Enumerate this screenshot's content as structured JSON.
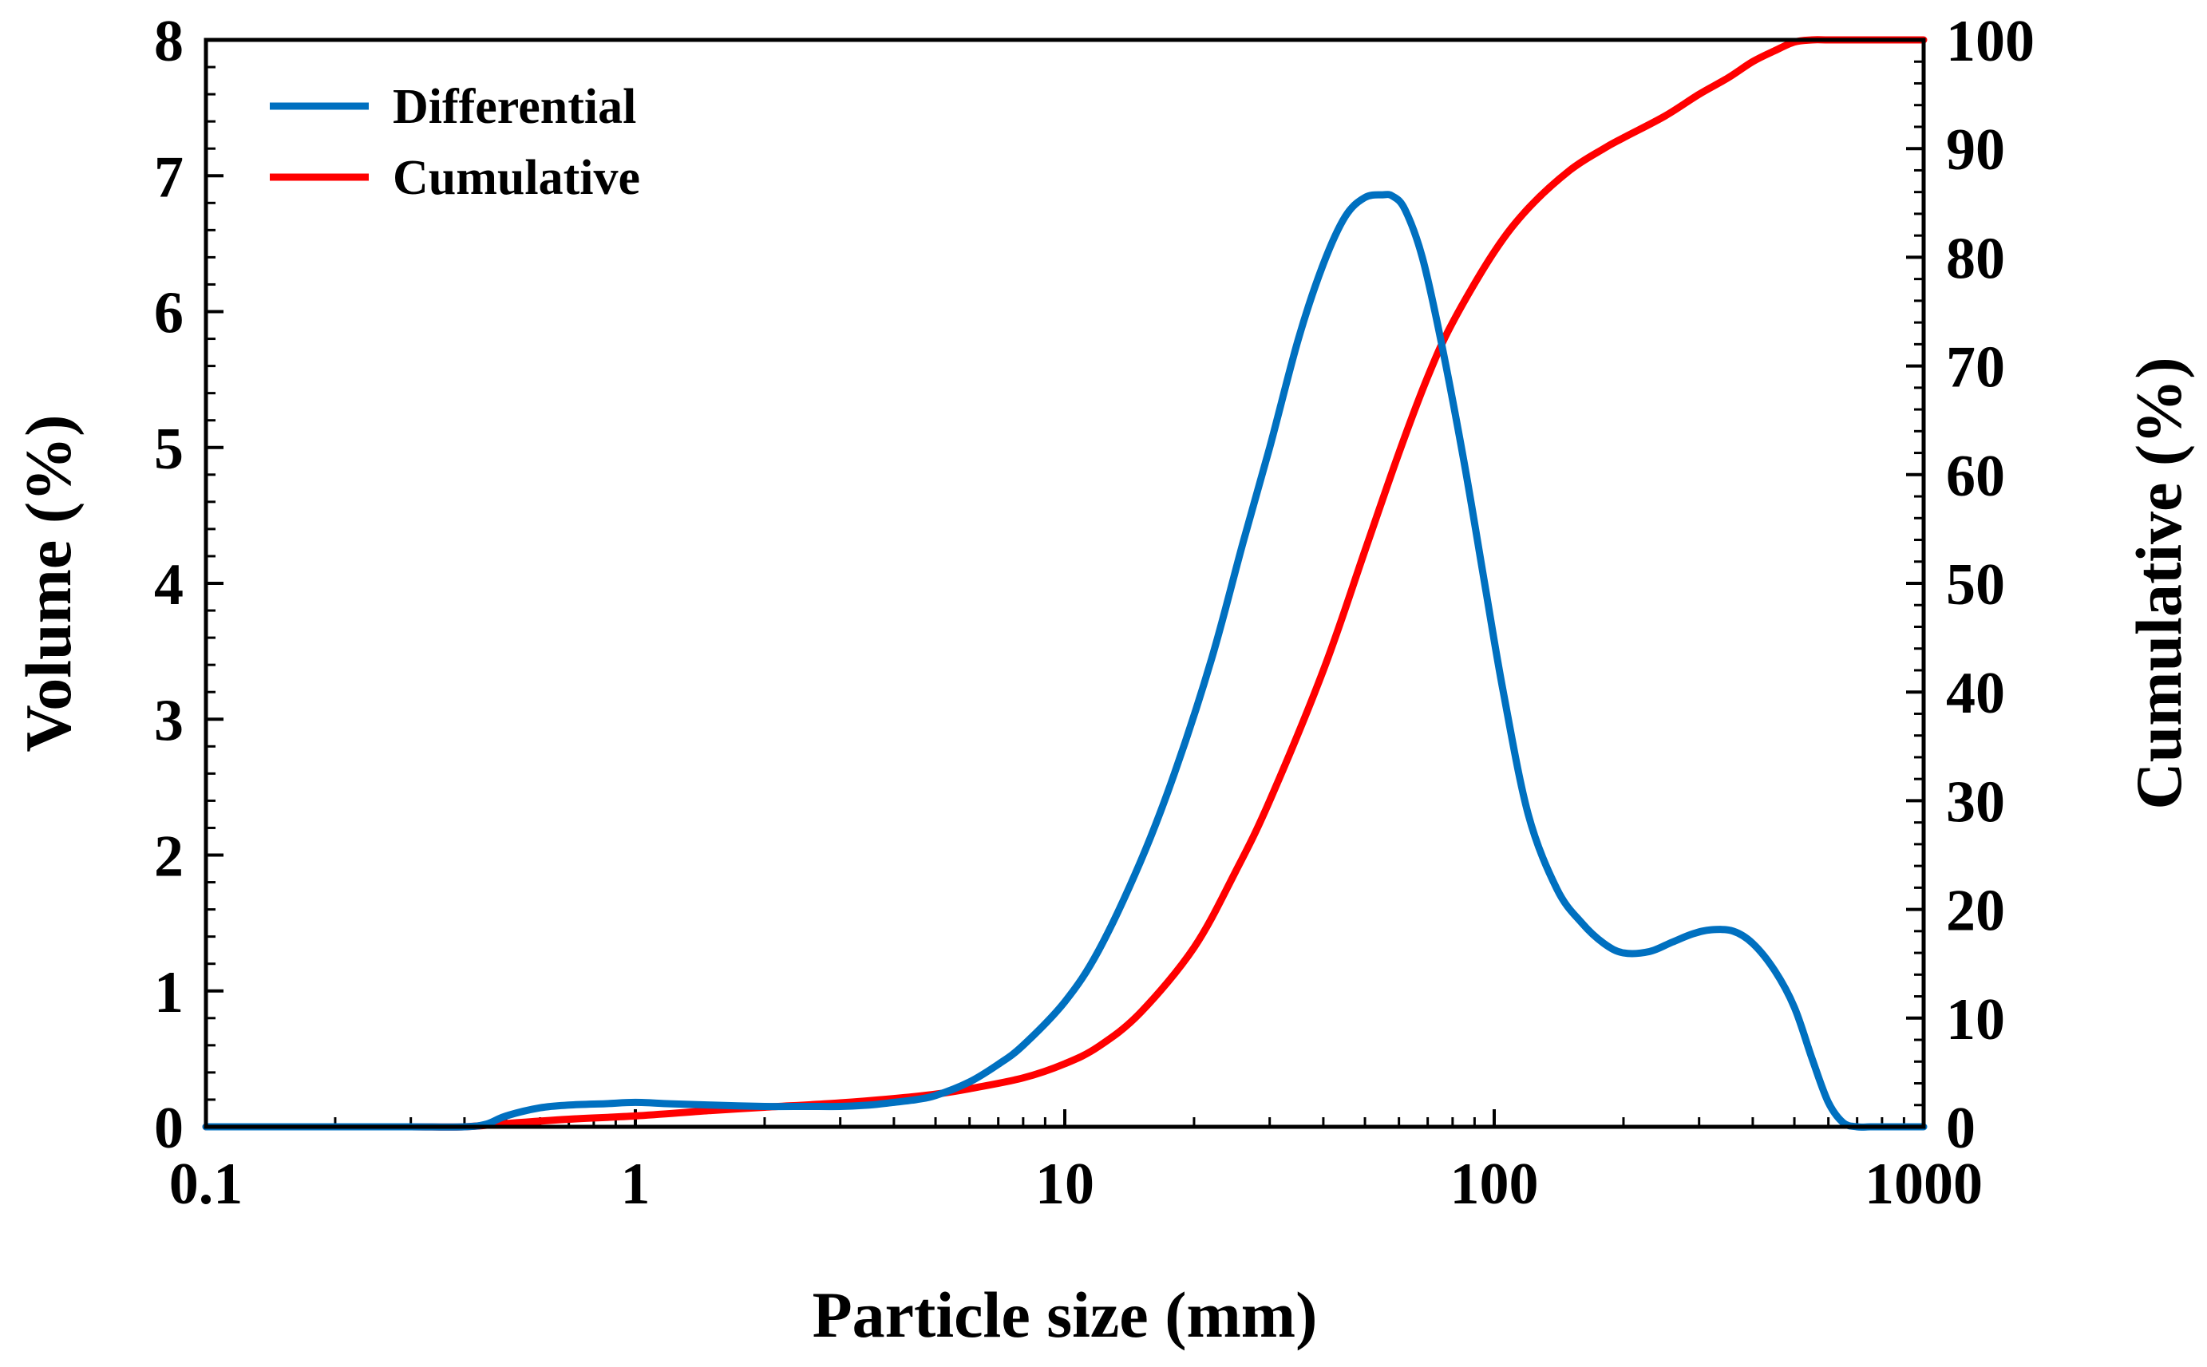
{
  "chart_data": {
    "type": "line",
    "xlabel": "Particle size (mm)",
    "ylabel": "Volume (%)",
    "y2label": "Cumulative (%)",
    "xscale": "log",
    "xlim": [
      0.1,
      1000
    ],
    "ylim": [
      0,
      8
    ],
    "y2lim": [
      0,
      100
    ],
    "x_ticks": [
      0.1,
      1,
      10,
      100,
      1000
    ],
    "x_tick_labels": [
      "0.1",
      "1",
      "10",
      "100",
      "1000"
    ],
    "y_ticks": [
      0,
      1,
      2,
      3,
      4,
      5,
      6,
      7,
      8
    ],
    "y_tick_labels": [
      "0",
      "1",
      "2",
      "3",
      "4",
      "5",
      "6",
      "7",
      "8"
    ],
    "y2_ticks": [
      0,
      10,
      20,
      30,
      40,
      50,
      60,
      70,
      80,
      90,
      100
    ],
    "y2_tick_labels": [
      "0",
      "10",
      "20",
      "30",
      "40",
      "50",
      "60",
      "70",
      "80",
      "90",
      "100"
    ],
    "legend_position": "top-left",
    "grid": false,
    "series": [
      {
        "name": "Differential",
        "axis": "left",
        "color": "#0070C0",
        "x": [
          0.1,
          0.2,
          0.3,
          0.4,
          0.45,
          0.5,
          0.6,
          0.7,
          0.85,
          1.0,
          1.2,
          1.5,
          2.0,
          2.5,
          3.0,
          3.5,
          4.0,
          4.5,
          5.0,
          6.0,
          7.0,
          8.0,
          10,
          12,
          15,
          18,
          22,
          26,
          30,
          35,
          40,
          45,
          50,
          55,
          58,
          62,
          68,
          75,
          85,
          95,
          105,
          120,
          140,
          160,
          180,
          200,
          230,
          260,
          290,
          320,
          360,
          400,
          450,
          500,
          550,
          600,
          650,
          700,
          750,
          800,
          900,
          1000
        ],
        "values": [
          0,
          0,
          0,
          0,
          0.02,
          0.08,
          0.14,
          0.16,
          0.17,
          0.18,
          0.17,
          0.16,
          0.15,
          0.15,
          0.15,
          0.16,
          0.18,
          0.2,
          0.23,
          0.33,
          0.46,
          0.6,
          0.92,
          1.3,
          1.95,
          2.6,
          3.45,
          4.3,
          5.0,
          5.8,
          6.35,
          6.7,
          6.84,
          6.86,
          6.85,
          6.75,
          6.4,
          5.8,
          4.9,
          4.0,
          3.2,
          2.3,
          1.75,
          1.5,
          1.35,
          1.28,
          1.29,
          1.36,
          1.42,
          1.45,
          1.44,
          1.35,
          1.15,
          0.88,
          0.5,
          0.18,
          0.03,
          0,
          0,
          0,
          0,
          0
        ]
      },
      {
        "name": "Cumulative",
        "axis": "right",
        "color": "#FF0000",
        "x": [
          0.1,
          0.2,
          0.3,
          0.4,
          0.5,
          0.7,
          1.0,
          1.5,
          2.0,
          3.0,
          4.0,
          5.0,
          6.0,
          8.0,
          10,
          12,
          15,
          20,
          25,
          30,
          40,
          50,
          60,
          70,
          80,
          100,
          120,
          150,
          180,
          200,
          250,
          300,
          350,
          400,
          450,
          500,
          550,
          600,
          700,
          800,
          1000
        ],
        "values": [
          0,
          0,
          0,
          0,
          0.3,
          0.7,
          1.0,
          1.5,
          1.8,
          2.2,
          2.6,
          3.0,
          3.5,
          4.5,
          5.8,
          7.4,
          10.5,
          16.5,
          23.5,
          30,
          42,
          53,
          62,
          69,
          74,
          80.5,
          84.5,
          88,
          90,
          91,
          93,
          95,
          96.5,
          98,
          99,
          99.8,
          100,
          100,
          100,
          100,
          100
        ]
      }
    ]
  }
}
